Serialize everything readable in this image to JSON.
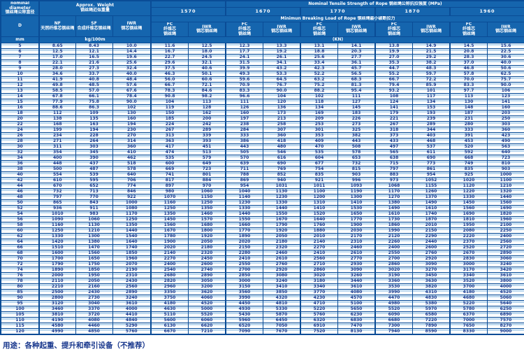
{
  "table": {
    "header": {
      "nominal_diameter": "nominal\ndiameter\n钢丝绳公称直径",
      "d": "D",
      "mm": "mm",
      "approx_weight": "Approx．Weight\n钢丝绳近似重量",
      "nf": "NF\n天然纤维芯钢丝绳",
      "sf": "SF\n合成纤维芯钢丝绳",
      "iwr_weight": "IWR\n钢芯钢丝绳",
      "kg_unit": "kg/100m",
      "tensile_title": "Nominal  Tensile  Strength  of  Rope  钢丝绳公称抗拉强度  (MPa)",
      "breaking_title": "Minimun  Breaking  Load  of  Rope  钢丝绳最小破断拉力",
      "kn_unit": "(KN)",
      "strengths": [
        "1570",
        "1670",
        "1770",
        "1870",
        "1960"
      ],
      "fc": "FC\n纤维芯\n钢丝绳",
      "iwr": "IWR\n钢芯钢丝绳"
    },
    "rows": [
      [
        "5",
        "8.65",
        "8.43",
        "10.0",
        "11.6",
        "12.5",
        "12.3",
        "13.3",
        "13.1",
        "14.1",
        "13.8",
        "14.9",
        "14.5",
        "15.6"
      ],
      [
        "6",
        "12.5",
        "12.1",
        "14.4",
        "16.7",
        "18.0",
        "17.7",
        "19.2",
        "18.8",
        "20.3",
        "19.9",
        "21.5",
        "20.8",
        "22.5"
      ],
      [
        "7",
        "17.0",
        "16.5",
        "19.6",
        "22.7",
        "24.5",
        "24.1",
        "26.1",
        "25.6",
        "27.7",
        "27.0",
        "29.2",
        "28.3",
        "30.6"
      ],
      [
        "8",
        "22.1",
        "21.6",
        "25.6",
        "29.6",
        "32.1",
        "31.5",
        "34.1",
        "33.4",
        "36.1",
        "35.3",
        "38.2",
        "37.0",
        "40.0"
      ],
      [
        "9",
        "28.0",
        "27.3",
        "32.4",
        "37.5",
        "40.6",
        "39.9",
        "43.2",
        "42.3",
        "45.7",
        "44.7",
        "48.3",
        "46.8",
        "50.6"
      ],
      [
        "10",
        "34.6",
        "33.7",
        "40.0",
        "46.3",
        "50.1",
        "49.3",
        "53.3",
        "52.2",
        "56.5",
        "55.2",
        "59.7",
        "57.8",
        "62.5"
      ],
      [
        "11",
        "41.9",
        "40.8",
        "48.4",
        "56.0",
        "60.6",
        "59.6",
        "64.5",
        "63.2",
        "68.3",
        "66.7",
        "72.2",
        "70.0",
        "75.7"
      ],
      [
        "12",
        "49.8",
        "48.5",
        "57.6",
        "66.7",
        "72.1",
        "70.9",
        "76.7",
        "75.2",
        "81.3",
        "79.4",
        "85.9",
        "83.3",
        "90.0"
      ],
      [
        "13",
        "58.5",
        "57.0",
        "67.6",
        "78.3",
        "84.6",
        "83.3",
        "90.0",
        "88.2",
        "95.4",
        "93.2",
        "101",
        "97.7",
        "106"
      ],
      [
        "14",
        "67.8",
        "66.1",
        "78.4",
        "90.8",
        "98.2",
        "96.6",
        "104",
        "102",
        "111",
        "108",
        "117",
        "113",
        "123"
      ],
      [
        "15",
        "77.9",
        "75.8",
        "90.0",
        "104",
        "113",
        "111",
        "120",
        "118",
        "127",
        "124",
        "134",
        "130",
        "141"
      ],
      [
        "16",
        "88.6",
        "86.3",
        "102",
        "119",
        "128",
        "126",
        "136",
        "134",
        "145",
        "141",
        "153",
        "148",
        "160"
      ],
      [
        "18",
        "112",
        "109",
        "130",
        "150",
        "162",
        "160",
        "173",
        "169",
        "183",
        "179",
        "193",
        "187",
        "203"
      ],
      [
        "20",
        "138",
        "135",
        "160",
        "185",
        "200",
        "197",
        "213",
        "209",
        "226",
        "221",
        "239",
        "231",
        "250"
      ],
      [
        "22",
        "168",
        "163",
        "194",
        "224",
        "242",
        "238",
        "258",
        "253",
        "273",
        "267",
        "289",
        "280",
        "303"
      ],
      [
        "24",
        "199",
        "194",
        "230",
        "267",
        "289",
        "284",
        "307",
        "301",
        "325",
        "318",
        "344",
        "333",
        "360"
      ],
      [
        "26",
        "234",
        "228",
        "270",
        "313",
        "339",
        "333",
        "360",
        "353",
        "382",
        "373",
        "403",
        "391",
        "423"
      ],
      [
        "28",
        "271",
        "264",
        "314",
        "363",
        "393",
        "386",
        "418",
        "409",
        "443",
        "433",
        "468",
        "453",
        "490"
      ],
      [
        "30",
        "311",
        "303",
        "360",
        "417",
        "451",
        "443",
        "480",
        "470",
        "508",
        "497",
        "537",
        "520",
        "563"
      ],
      [
        "32",
        "354",
        "345",
        "410",
        "474",
        "513",
        "505",
        "546",
        "535",
        "578",
        "565",
        "611",
        "592",
        "640"
      ],
      [
        "34",
        "400",
        "390",
        "462",
        "535",
        "579",
        "570",
        "616",
        "604",
        "653",
        "638",
        "690",
        "668",
        "723"
      ],
      [
        "36",
        "448",
        "437",
        "518",
        "600",
        "649",
        "639",
        "690",
        "677",
        "732",
        "715",
        "773",
        "749",
        "810"
      ],
      [
        "38",
        "500",
        "487",
        "578",
        "669",
        "723",
        "711",
        "769",
        "754",
        "815",
        "797",
        "861",
        "835",
        "903"
      ],
      [
        "40",
        "554",
        "539",
        "640",
        "741",
        "801",
        "788",
        "852",
        "835",
        "903",
        "883",
        "954",
        "925",
        "1000"
      ],
      [
        "42",
        "610",
        "595",
        "706",
        "817",
        "884",
        "869",
        "940",
        "921",
        "996",
        "973",
        "1052",
        "1020",
        "1100"
      ],
      [
        "44",
        "670",
        "652",
        "774",
        "897",
        "970",
        "954",
        "1031",
        "1011",
        "1093",
        "1068",
        "1155",
        "1120",
        "1210"
      ],
      [
        "46",
        "732",
        "713",
        "846",
        "980",
        "1060",
        "1040",
        "1130",
        "1100",
        "1190",
        "1170",
        "1260",
        "1220",
        "1320"
      ],
      [
        "48",
        "797",
        "770",
        "922",
        "1070",
        "1150",
        "1140",
        "1230",
        "1200",
        "1300",
        "1270",
        "1370",
        "1330",
        "1440"
      ],
      [
        "50",
        "865",
        "843",
        "1000",
        "1160",
        "1250",
        "1230",
        "1330",
        "1310",
        "1410",
        "1380",
        "1490",
        "1450",
        "1560"
      ],
      [
        "52",
        "936",
        "911",
        "1080",
        "1250",
        "1350",
        "1330",
        "1440",
        "1410",
        "1530",
        "1490",
        "1610",
        "1560",
        "1690"
      ],
      [
        "54",
        "1010",
        "983",
        "1170",
        "1350",
        "1460",
        "1440",
        "1550",
        "1520",
        "1650",
        "1610",
        "1740",
        "1690",
        "1820"
      ],
      [
        "56",
        "1090",
        "1060",
        "1250",
        "1450",
        "1570",
        "1550",
        "1670",
        "1640",
        "1770",
        "1730",
        "1870",
        "1810",
        "1960"
      ],
      [
        "58",
        "1160",
        "1130",
        "1350",
        "1560",
        "1680",
        "1660",
        "1790",
        "1760",
        "1900",
        "1860",
        "2010",
        "1950",
        "2100"
      ],
      [
        "60",
        "1250",
        "1210",
        "1440",
        "1670",
        "1800",
        "1770",
        "1920",
        "1880",
        "2030",
        "1990",
        "2150",
        "2080",
        "2250"
      ],
      [
        "62",
        "1330",
        "1300",
        "1540",
        "1780",
        "1920",
        "1890",
        "2050",
        "2010",
        "2170",
        "2120",
        "2290",
        "2220",
        "2400"
      ],
      [
        "64",
        "1420",
        "1380",
        "1640",
        "1900",
        "2050",
        "2020",
        "2180",
        "2140",
        "2310",
        "2260",
        "2440",
        "2370",
        "2560"
      ],
      [
        "66",
        "1510",
        "1470",
        "1740",
        "2020",
        "2180",
        "2150",
        "2320",
        "2270",
        "2460",
        "2400",
        "2600",
        "2520",
        "2720"
      ],
      [
        "68",
        "1600",
        "1560",
        "1850",
        "2140",
        "2320",
        "2280",
        "2460",
        "2410",
        "2610",
        "2550",
        "2760",
        "2670",
        "2890"
      ],
      [
        "70",
        "1700",
        "1650",
        "1960",
        "2270",
        "2450",
        "2410",
        "2610",
        "2560",
        "2770",
        "2700",
        "2920",
        "2830",
        "3060"
      ],
      [
        "72",
        "1790",
        "1750",
        "2070",
        "2400",
        "2600",
        "2550",
        "2760",
        "2710",
        "2930",
        "2860",
        "3090",
        "3000",
        "3240"
      ],
      [
        "74",
        "1890",
        "1850",
        "2190",
        "2540",
        "2740",
        "2700",
        "2920",
        "2860",
        "3090",
        "3020",
        "3270",
        "3170",
        "3420"
      ],
      [
        "76",
        "2000",
        "1950",
        "2310",
        "2680",
        "2890",
        "2850",
        "3080",
        "3020",
        "3260",
        "3190",
        "3450",
        "3340",
        "3610"
      ],
      [
        "78",
        "2110",
        "2050",
        "2430",
        "2820",
        "3050",
        "3000",
        "3240",
        "3180",
        "3440",
        "3360",
        "3630",
        "3520",
        "3800"
      ],
      [
        "80",
        "2210",
        "2160",
        "2560",
        "2960",
        "3200",
        "3150",
        "3410",
        "3340",
        "3610",
        "3530",
        "3820",
        "3700",
        "4000"
      ],
      [
        "85",
        "2500",
        "2430",
        "2890",
        "3350",
        "3620",
        "3560",
        "3850",
        "3770",
        "4080",
        "3990",
        "4310",
        "4180",
        "4520"
      ],
      [
        "90",
        "2800",
        "2730",
        "3240",
        "3750",
        "4060",
        "3990",
        "4320",
        "4230",
        "4570",
        "4470",
        "4830",
        "4680",
        "5060"
      ],
      [
        "95",
        "3120",
        "3040",
        "3610",
        "4180",
        "4520",
        "4450",
        "4810",
        "4710",
        "5100",
        "4980",
        "5380",
        "5220",
        "5640"
      ],
      [
        "100",
        "3460",
        "3370",
        "4000",
        "4630",
        "5000",
        "4930",
        "5330",
        "5220",
        "5650",
        "5520",
        "5970",
        "5780",
        "6250"
      ],
      [
        "105",
        "3810",
        "3720",
        "4410",
        "5110",
        "5520",
        "5430",
        "5870",
        "5760",
        "6230",
        "6090",
        "6580",
        "6370",
        "6890"
      ],
      [
        "110",
        "4190",
        "4080",
        "4840",
        "5600",
        "6060",
        "5960",
        "6450",
        "6320",
        "6830",
        "6680",
        "7220",
        "7000",
        "7570"
      ],
      [
        "115",
        "4580",
        "4460",
        "5290",
        "6130",
        "6620",
        "6520",
        "7050",
        "6910",
        "7470",
        "7300",
        "7890",
        "7650",
        "8270"
      ],
      [
        "120",
        "4990",
        "4850",
        "5760",
        "6670",
        "7210",
        "7090",
        "7670",
        "7520",
        "8130",
        "7940",
        "8590",
        "8330",
        "9000"
      ]
    ]
  },
  "footer": {
    "usage": "用途：各种起重、提升和牵引设备（不推荐）"
  },
  "colors": {
    "header_bg": "#1565ae",
    "grid_line": "#0a4c96",
    "body_text": "#17368c",
    "row_stripe": "#bdd9ef"
  }
}
